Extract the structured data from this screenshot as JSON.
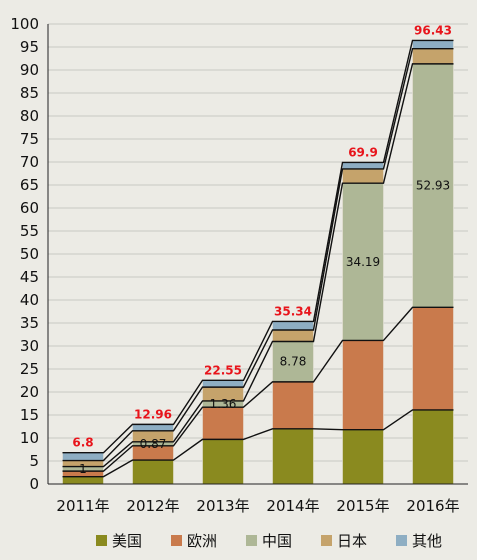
{
  "chart_data": {
    "type": "bar",
    "stacked": true,
    "categories": [
      "2011年",
      "2012年",
      "2013年",
      "2014年",
      "2015年",
      "2016年"
    ],
    "series": [
      {
        "name": "美国",
        "values": [
          1.6,
          5.2,
          9.7,
          12.0,
          11.8,
          16.1
        ],
        "color": "#8a8a1f"
      },
      {
        "name": "欧洲",
        "values": [
          1.2,
          3.1,
          7.0,
          10.2,
          19.4,
          22.3
        ],
        "color": "#c97a4c"
      },
      {
        "name": "中国",
        "values": [
          1.0,
          0.87,
          1.36,
          8.78,
          34.19,
          52.93
        ],
        "color": "#aeb796"
      },
      {
        "name": "日本",
        "values": [
          1.3,
          2.4,
          3.0,
          2.5,
          3.1,
          3.3
        ],
        "color": "#c5a36b"
      },
      {
        "name": "其他",
        "values": [
          1.7,
          1.39,
          1.49,
          1.86,
          1.41,
          1.8
        ],
        "color": "#8eaec3"
      }
    ],
    "totals": [
      "6.8",
      "12.96",
      "22.55",
      "35.34",
      "69.9",
      "96.43"
    ],
    "segment_labels": [
      {
        "category": 0,
        "series": 2,
        "text": "1"
      },
      {
        "category": 1,
        "series": 2,
        "text": "0.87"
      },
      {
        "category": 2,
        "series": 2,
        "text": "1.36"
      },
      {
        "category": 3,
        "series": 2,
        "text": "8.78"
      },
      {
        "category": 4,
        "series": 2,
        "text": "34.19"
      },
      {
        "category": 5,
        "series": 2,
        "text": "52.93"
      }
    ],
    "ylim": [
      0,
      100
    ],
    "yticks": [
      "0",
      "5",
      "10",
      "15",
      "20",
      "25",
      "30",
      "35",
      "40",
      "45",
      "50",
      "55",
      "60",
      "65",
      "70",
      "75",
      "80",
      "85",
      "90",
      "95",
      "100"
    ],
    "grid": true,
    "legend_position": "bottom",
    "title": "",
    "xlabel": "",
    "ylabel": ""
  }
}
